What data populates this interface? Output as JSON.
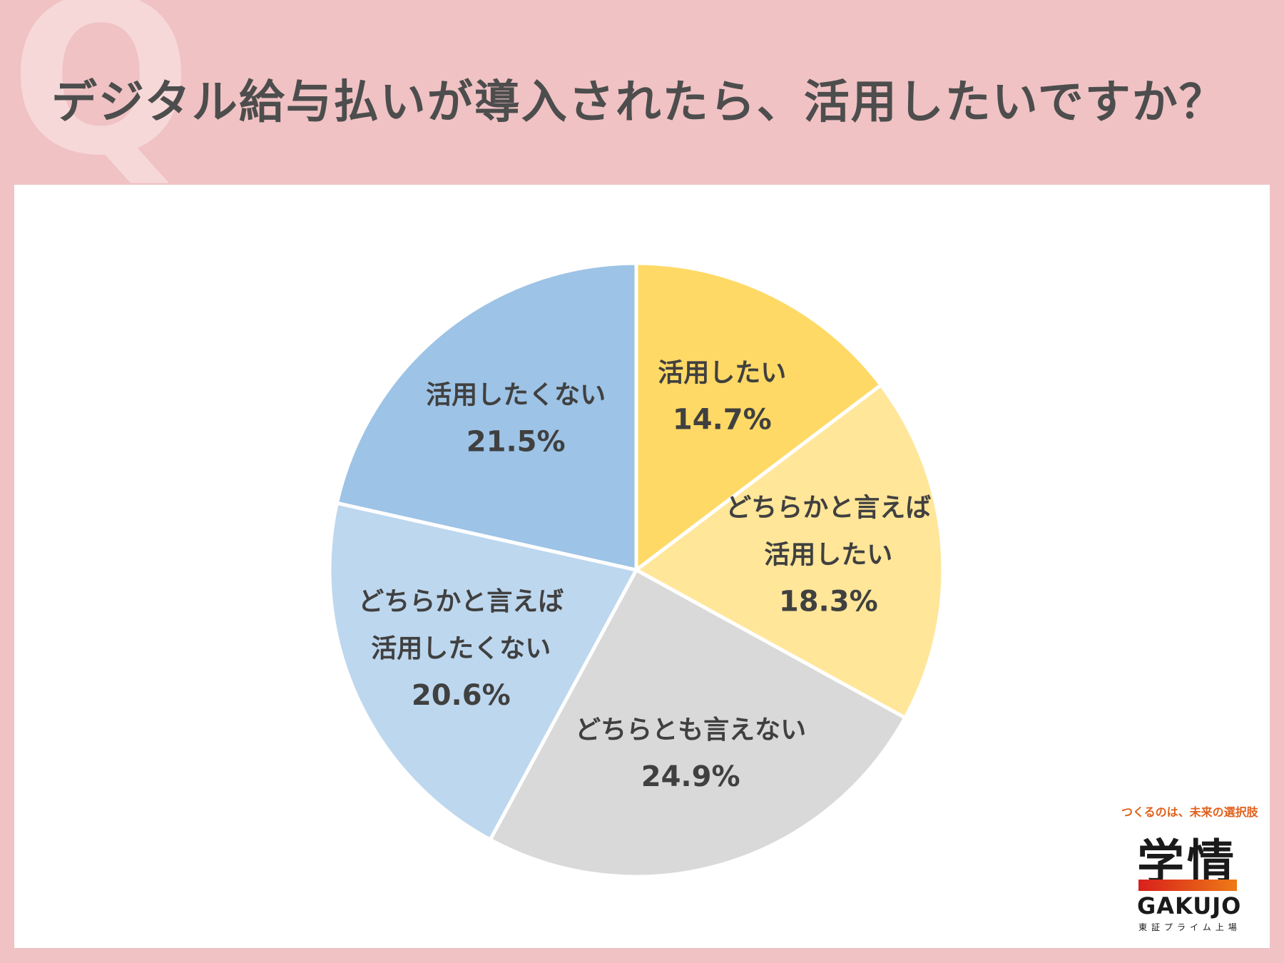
{
  "header": {
    "q_mark": "Q",
    "title": "デジタル給与払いが導入されたら、活用したいですか？"
  },
  "chart_data": {
    "type": "pie",
    "start": "12 o'clock, clockwise",
    "slices": [
      {
        "label_lines": [
          "活用したい"
        ],
        "value": 14.7,
        "value_label": "14.7%",
        "color": "#ffd966"
      },
      {
        "label_lines": [
          "どちらかと言えば",
          "活用したい"
        ],
        "value": 18.3,
        "value_label": "18.3%",
        "color": "#ffe699"
      },
      {
        "label_lines": [
          "どちらとも言えない"
        ],
        "value": 24.9,
        "value_label": "24.9%",
        "color": "#d9d9d9"
      },
      {
        "label_lines": [
          "どちらかと言えば",
          "活用したくない"
        ],
        "value": 20.6,
        "value_label": "20.6%",
        "color": "#bdd7ee"
      },
      {
        "label_lines": [
          "活用したくない"
        ],
        "value": 21.5,
        "value_label": "21.5%",
        "color": "#9dc3e6"
      }
    ]
  },
  "logo": {
    "tagline": "つくるのは、未来の選択肢",
    "kanji": "学情",
    "name": "GAKUJO",
    "sub": "東証プライム上場"
  }
}
